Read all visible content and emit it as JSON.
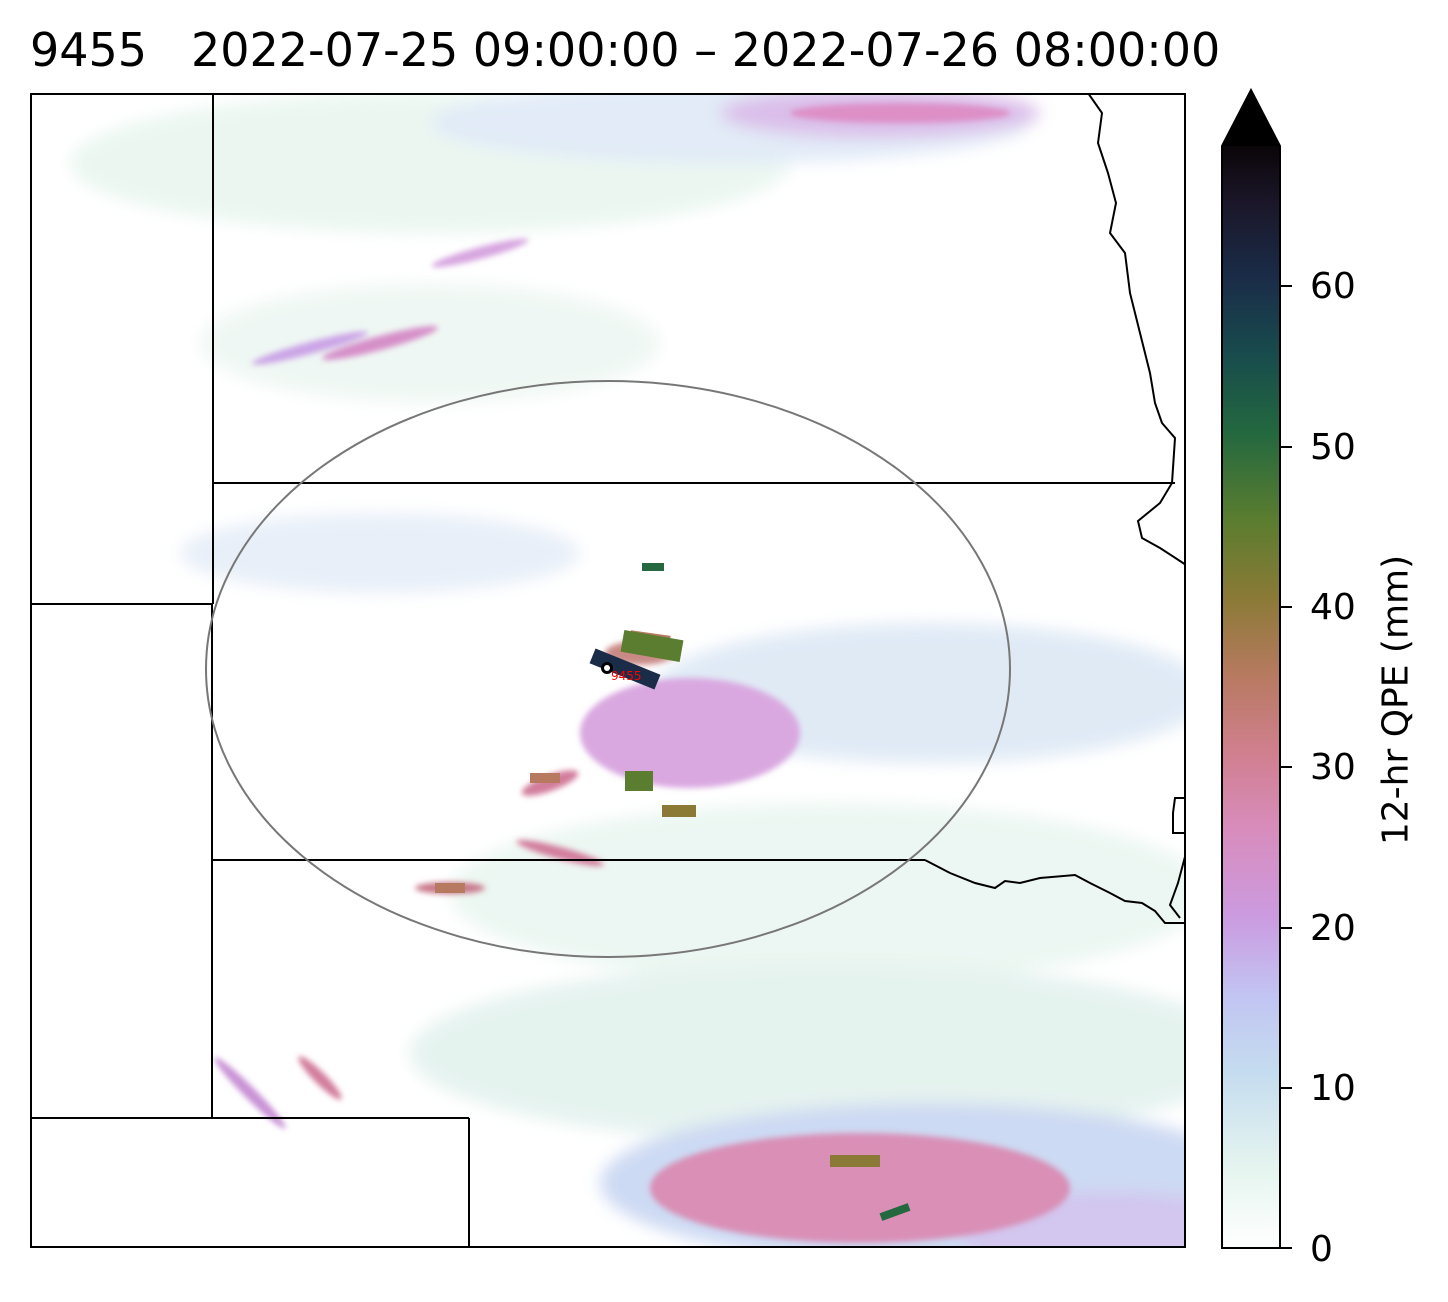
{
  "title": {
    "station_id": "9455",
    "time_range": "2022-07-25 09:00:00 – 2022-07-26 08:00:00"
  },
  "colorbar": {
    "label": "12-hr QPE (mm)",
    "ticks": [
      "0",
      "10",
      "20",
      "30",
      "40",
      "50",
      "60"
    ],
    "tick_values": [
      0,
      10,
      20,
      30,
      40,
      50,
      60
    ],
    "range": [
      0,
      69
    ],
    "extend": "max",
    "colormap": "cubehelix_r",
    "colors": [
      "#ffffff",
      "#e6f5ef",
      "#bcd4f0",
      "#c8b0ea",
      "#d493d3",
      "#d77e9c",
      "#b77a60",
      "#8a7a36",
      "#5b7d2f",
      "#23683f",
      "#184c4d",
      "#1a2c48",
      "#1b1628",
      "#000000"
    ]
  },
  "map": {
    "marker": {
      "label": "9455",
      "color": "#ff0000"
    },
    "circle_color": "#777777",
    "precip_cells": [
      {
        "value": 22
      },
      {
        "value": 18
      },
      {
        "value": 28
      },
      {
        "value": 35
      },
      {
        "value": 45
      },
      {
        "value": 62
      },
      {
        "value": 38
      },
      {
        "value": 30
      },
      {
        "value": 42
      },
      {
        "value": 25
      },
      {
        "value": 30
      },
      {
        "value": 36
      }
    ]
  }
}
